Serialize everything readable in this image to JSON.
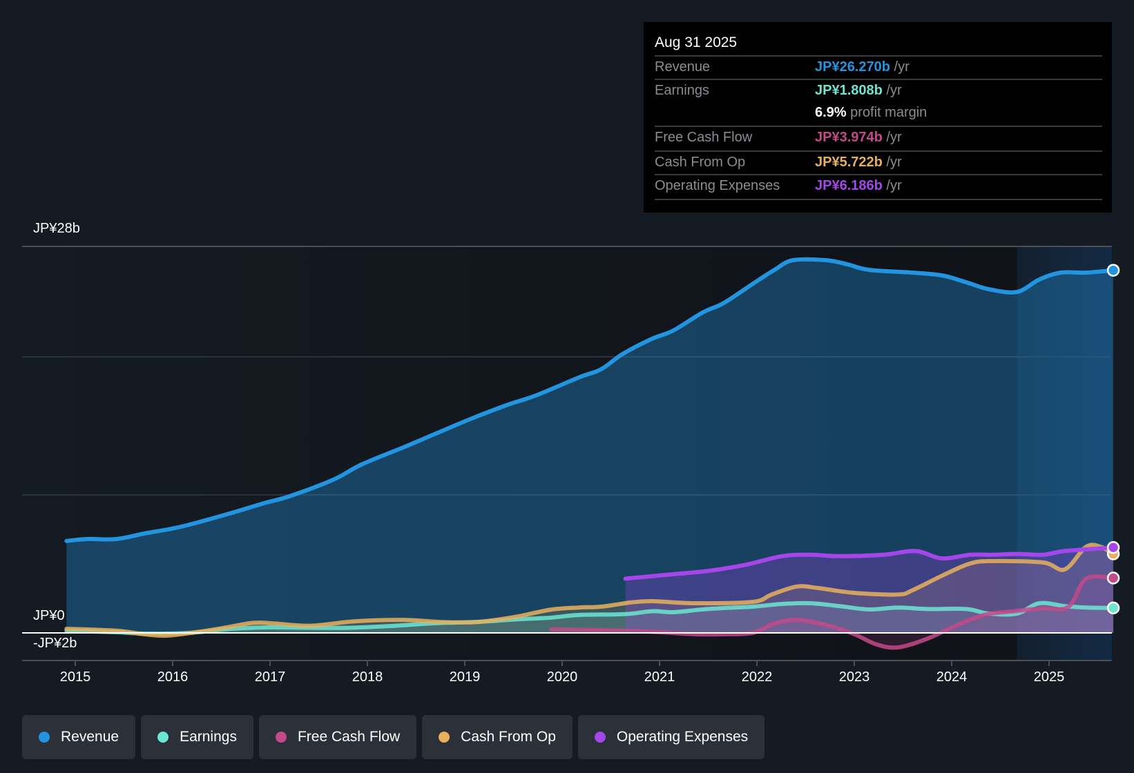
{
  "tooltip": {
    "date": "Aug 31 2025",
    "rows": [
      {
        "label": "Revenue",
        "value": "JP¥26.270b",
        "unit": " /yr",
        "color": "#2394df"
      },
      {
        "label": "Earnings",
        "value": "JP¥1.808b",
        "unit": " /yr",
        "color": "#6ce5d2"
      },
      {
        "label": "",
        "value": "6.9%",
        "unit": " profit margin",
        "color": "#ffffff"
      },
      {
        "label": "Free Cash Flow",
        "value": "JP¥3.974b",
        "unit": " /yr",
        "color": "#c4498a"
      },
      {
        "label": "Cash From Op",
        "value": "JP¥5.722b",
        "unit": " /yr",
        "color": "#e8b05d"
      },
      {
        "label": "Operating Expenses",
        "value": "JP¥6.186b",
        "unit": " /yr",
        "color": "#a446ea"
      }
    ]
  },
  "legend": [
    {
      "label": "Revenue",
      "color": "#2394df"
    },
    {
      "label": "Earnings",
      "color": "#6ce5d2"
    },
    {
      "label": "Free Cash Flow",
      "color": "#c4498a"
    },
    {
      "label": "Cash From Op",
      "color": "#e8b05d"
    },
    {
      "label": "Operating Expenses",
      "color": "#a446ea"
    }
  ],
  "chart_data": {
    "type": "line",
    "title": "",
    "xlabel": "",
    "ylabel": "",
    "y_unit": "JP¥ billions",
    "ylim": [
      -2,
      28
    ],
    "xlim": [
      2014.5,
      2025.66
    ],
    "y_tick_labels": [
      {
        "value": 28,
        "label": "JP¥28b"
      },
      {
        "value": 0,
        "label": "JP¥0"
      },
      {
        "value": -2,
        "label": "-JP¥2b"
      }
    ],
    "gridlines": [
      28,
      20,
      10
    ],
    "x_tick_labels": [
      "2015",
      "2016",
      "2017",
      "2018",
      "2019",
      "2020",
      "2021",
      "2022",
      "2023",
      "2024",
      "2025"
    ],
    "x_ticks": [
      2015,
      2016,
      2017,
      2018,
      2019,
      2020,
      2021,
      2022,
      2023,
      2024,
      2025
    ],
    "highlight_start": 2024.67,
    "grid": true,
    "legend_position": "bottom",
    "series": [
      {
        "name": "Revenue",
        "color": "#2394df",
        "points": [
          [
            2014.91,
            6.66
          ],
          [
            2015.12,
            6.8
          ],
          [
            2015.42,
            6.8
          ],
          [
            2015.71,
            7.2
          ],
          [
            2016.09,
            7.7
          ],
          [
            2016.61,
            8.7
          ],
          [
            2016.94,
            9.4
          ],
          [
            2017.2,
            9.9
          ],
          [
            2017.65,
            11.1
          ],
          [
            2017.94,
            12.2
          ],
          [
            2018.39,
            13.5
          ],
          [
            2018.69,
            14.4
          ],
          [
            2019.06,
            15.5
          ],
          [
            2019.43,
            16.5
          ],
          [
            2019.73,
            17.2
          ],
          [
            2020.17,
            18.5
          ],
          [
            2020.4,
            19.1
          ],
          [
            2020.62,
            20.2
          ],
          [
            2020.92,
            21.3
          ],
          [
            2021.14,
            21.9
          ],
          [
            2021.44,
            23.2
          ],
          [
            2021.66,
            23.9
          ],
          [
            2021.96,
            25.3
          ],
          [
            2022.18,
            26.3
          ],
          [
            2022.37,
            27.0
          ],
          [
            2022.71,
            27.0
          ],
          [
            2022.93,
            26.7
          ],
          [
            2023.15,
            26.3
          ],
          [
            2023.6,
            26.1
          ],
          [
            2023.9,
            25.9
          ],
          [
            2024.15,
            25.4
          ],
          [
            2024.38,
            24.9
          ],
          [
            2024.67,
            24.7
          ],
          [
            2024.9,
            25.6
          ],
          [
            2025.12,
            26.1
          ],
          [
            2025.38,
            26.1
          ],
          [
            2025.66,
            26.27
          ]
        ]
      },
      {
        "name": "Earnings",
        "color": "#6ce5d2",
        "points": [
          [
            2014.91,
            0.16
          ],
          [
            2015.42,
            0.05
          ],
          [
            2015.71,
            -0.05
          ],
          [
            2016.16,
            0.0
          ],
          [
            2016.61,
            0.3
          ],
          [
            2016.98,
            0.4
          ],
          [
            2017.42,
            0.37
          ],
          [
            2017.8,
            0.37
          ],
          [
            2018.24,
            0.5
          ],
          [
            2018.69,
            0.7
          ],
          [
            2019.13,
            0.8
          ],
          [
            2019.58,
            1.0
          ],
          [
            2019.88,
            1.1
          ],
          [
            2020.17,
            1.3
          ],
          [
            2020.65,
            1.36
          ],
          [
            2020.92,
            1.57
          ],
          [
            2021.14,
            1.5
          ],
          [
            2021.44,
            1.7
          ],
          [
            2021.66,
            1.8
          ],
          [
            2021.96,
            1.9
          ],
          [
            2022.26,
            2.1
          ],
          [
            2022.55,
            2.15
          ],
          [
            2022.85,
            1.94
          ],
          [
            2023.15,
            1.7
          ],
          [
            2023.45,
            1.84
          ],
          [
            2023.75,
            1.73
          ],
          [
            2024.15,
            1.73
          ],
          [
            2024.38,
            1.4
          ],
          [
            2024.67,
            1.4
          ],
          [
            2024.9,
            2.15
          ],
          [
            2025.16,
            1.94
          ],
          [
            2025.38,
            1.84
          ],
          [
            2025.66,
            1.808
          ]
        ]
      },
      {
        "name": "Free Cash Flow",
        "color": "#c4498a",
        "points": [
          [
            2019.89,
            0.26
          ],
          [
            2020.62,
            0.16
          ],
          [
            2021.0,
            0.05
          ],
          [
            2021.36,
            -0.1
          ],
          [
            2021.66,
            -0.1
          ],
          [
            2021.96,
            0.0
          ],
          [
            2022.18,
            0.68
          ],
          [
            2022.41,
            0.94
          ],
          [
            2022.71,
            0.58
          ],
          [
            2023.0,
            -0.1
          ],
          [
            2023.23,
            -0.84
          ],
          [
            2023.45,
            -1.05
          ],
          [
            2023.75,
            -0.42
          ],
          [
            2024.04,
            0.52
          ],
          [
            2024.34,
            1.31
          ],
          [
            2024.64,
            1.57
          ],
          [
            2024.94,
            1.78
          ],
          [
            2025.2,
            1.89
          ],
          [
            2025.38,
            3.93
          ],
          [
            2025.66,
            3.974
          ]
        ]
      },
      {
        "name": "Cash From Op",
        "color": "#e8b05d",
        "points": [
          [
            2014.91,
            0.3
          ],
          [
            2015.42,
            0.16
          ],
          [
            2015.71,
            -0.1
          ],
          [
            2015.94,
            -0.2
          ],
          [
            2016.24,
            0.05
          ],
          [
            2016.53,
            0.37
          ],
          [
            2016.83,
            0.73
          ],
          [
            2017.05,
            0.68
          ],
          [
            2017.42,
            0.52
          ],
          [
            2017.87,
            0.84
          ],
          [
            2018.39,
            0.94
          ],
          [
            2018.76,
            0.79
          ],
          [
            2019.13,
            0.79
          ],
          [
            2019.51,
            1.15
          ],
          [
            2019.88,
            1.68
          ],
          [
            2020.17,
            1.84
          ],
          [
            2020.4,
            1.9
          ],
          [
            2020.7,
            2.2
          ],
          [
            2020.92,
            2.3
          ],
          [
            2021.36,
            2.15
          ],
          [
            2021.96,
            2.25
          ],
          [
            2022.15,
            2.78
          ],
          [
            2022.41,
            3.36
          ],
          [
            2022.63,
            3.25
          ],
          [
            2023.0,
            2.9
          ],
          [
            2023.45,
            2.78
          ],
          [
            2023.6,
            3.1
          ],
          [
            2023.9,
            4.14
          ],
          [
            2024.19,
            5.03
          ],
          [
            2024.42,
            5.2
          ],
          [
            2024.94,
            5.1
          ],
          [
            2025.16,
            4.6
          ],
          [
            2025.38,
            6.24
          ],
          [
            2025.53,
            6.24
          ],
          [
            2025.66,
            5.722
          ]
        ]
      },
      {
        "name": "Operating Expenses",
        "color": "#a446ea",
        "points": [
          [
            2020.65,
            3.93
          ],
          [
            2021.14,
            4.25
          ],
          [
            2021.51,
            4.5
          ],
          [
            2021.88,
            4.93
          ],
          [
            2022.26,
            5.56
          ],
          [
            2022.55,
            5.66
          ],
          [
            2022.85,
            5.56
          ],
          [
            2023.3,
            5.66
          ],
          [
            2023.63,
            5.93
          ],
          [
            2023.9,
            5.4
          ],
          [
            2024.19,
            5.66
          ],
          [
            2024.42,
            5.66
          ],
          [
            2024.67,
            5.72
          ],
          [
            2024.94,
            5.66
          ],
          [
            2025.16,
            5.93
          ],
          [
            2025.66,
            6.186
          ]
        ]
      }
    ]
  }
}
